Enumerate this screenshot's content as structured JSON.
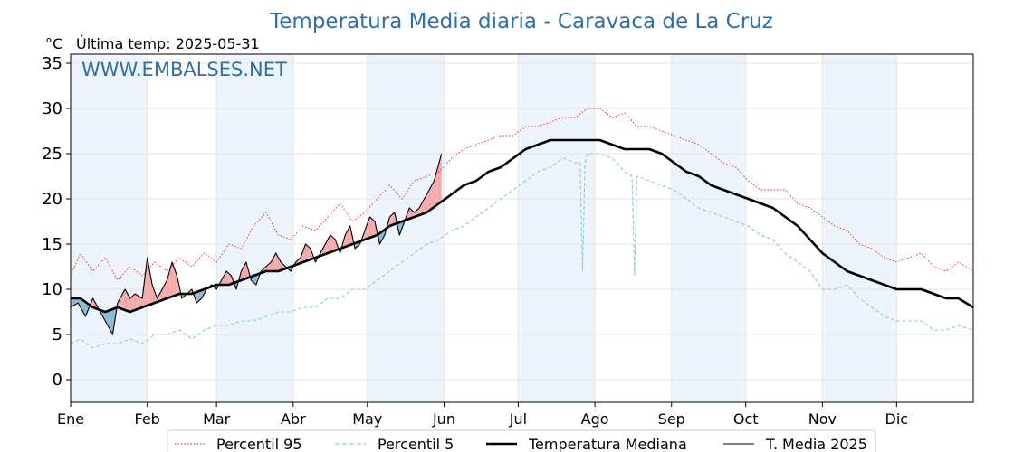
{
  "chart_data": {
    "type": "line",
    "title": "Temperatura Media diaria - Caravaca de La Cruz",
    "unit_label": "°C",
    "last_temp_text": "Última temp: 2025-05-31",
    "watermark": "WWW.EMBALSES.NET",
    "ylim": [
      -2.5,
      36
    ],
    "yticks": [
      0,
      5,
      10,
      15,
      20,
      25,
      30,
      35
    ],
    "xlim": [
      1,
      366
    ],
    "months": [
      "Ene",
      "Feb",
      "Mar",
      "Abr",
      "May",
      "Jun",
      "Jul",
      "Ago",
      "Sep",
      "Oct",
      "Nov",
      "Dic"
    ],
    "month_starts": [
      1,
      32,
      60,
      91,
      121,
      152,
      182,
      213,
      244,
      274,
      305,
      335
    ],
    "grid": true,
    "legend_placement": "bottom-center",
    "series": [
      {
        "name": "Percentil 95",
        "color": "#e8201a",
        "style": "dotted",
        "points": [
          [
            1,
            11.5
          ],
          [
            5,
            14
          ],
          [
            10,
            12
          ],
          [
            15,
            13.5
          ],
          [
            20,
            11
          ],
          [
            25,
            12.5
          ],
          [
            30,
            11.5
          ],
          [
            35,
            13
          ],
          [
            40,
            12
          ],
          [
            45,
            13.5
          ],
          [
            50,
            12.5
          ],
          [
            55,
            14
          ],
          [
            60,
            13
          ],
          [
            65,
            15
          ],
          [
            70,
            14.5
          ],
          [
            75,
            17
          ],
          [
            80,
            18.5
          ],
          [
            85,
            16
          ],
          [
            90,
            15.5
          ],
          [
            95,
            17
          ],
          [
            100,
            16.5
          ],
          [
            105,
            18
          ],
          [
            110,
            19.5
          ],
          [
            115,
            17.5
          ],
          [
            120,
            18.5
          ],
          [
            125,
            20
          ],
          [
            130,
            21.5
          ],
          [
            135,
            20
          ],
          [
            140,
            22
          ],
          [
            145,
            22.5
          ],
          [
            150,
            23
          ],
          [
            155,
            24.5
          ],
          [
            160,
            25.5
          ],
          [
            165,
            26
          ],
          [
            170,
            26.5
          ],
          [
            175,
            27
          ],
          [
            180,
            27
          ],
          [
            185,
            28
          ],
          [
            190,
            28
          ],
          [
            195,
            28.5
          ],
          [
            200,
            29
          ],
          [
            205,
            29
          ],
          [
            210,
            30
          ],
          [
            215,
            30
          ],
          [
            220,
            29
          ],
          [
            225,
            29.5
          ],
          [
            230,
            28
          ],
          [
            235,
            28
          ],
          [
            240,
            27.5
          ],
          [
            245,
            27
          ],
          [
            250,
            26.5
          ],
          [
            255,
            26
          ],
          [
            260,
            25
          ],
          [
            265,
            24
          ],
          [
            270,
            23.5
          ],
          [
            275,
            22
          ],
          [
            280,
            21
          ],
          [
            285,
            21
          ],
          [
            290,
            21
          ],
          [
            295,
            19.5
          ],
          [
            300,
            19
          ],
          [
            305,
            18
          ],
          [
            310,
            17
          ],
          [
            315,
            16.5
          ],
          [
            320,
            15
          ],
          [
            325,
            14.5
          ],
          [
            330,
            13.5
          ],
          [
            335,
            13
          ],
          [
            340,
            13.5
          ],
          [
            345,
            14
          ],
          [
            350,
            12.5
          ],
          [
            355,
            12
          ],
          [
            360,
            13
          ],
          [
            366,
            12
          ]
        ]
      },
      {
        "name": "Percentil 5",
        "color": "#8ec9dd",
        "style": "dashed",
        "points": [
          [
            1,
            4
          ],
          [
            5,
            4.5
          ],
          [
            10,
            3.5
          ],
          [
            15,
            4
          ],
          [
            20,
            4
          ],
          [
            25,
            4.5
          ],
          [
            30,
            4
          ],
          [
            35,
            5
          ],
          [
            40,
            5
          ],
          [
            45,
            5.5
          ],
          [
            50,
            4.5
          ],
          [
            55,
            5.5
          ],
          [
            60,
            6
          ],
          [
            65,
            6
          ],
          [
            70,
            6.5
          ],
          [
            75,
            6.5
          ],
          [
            80,
            7
          ],
          [
            85,
            7.5
          ],
          [
            90,
            7.5
          ],
          [
            95,
            8
          ],
          [
            100,
            8
          ],
          [
            105,
            9
          ],
          [
            110,
            9
          ],
          [
            115,
            10
          ],
          [
            120,
            10
          ],
          [
            125,
            11
          ],
          [
            130,
            12
          ],
          [
            135,
            13
          ],
          [
            140,
            14
          ],
          [
            145,
            15
          ],
          [
            150,
            15.5
          ],
          [
            155,
            16.5
          ],
          [
            160,
            17
          ],
          [
            165,
            18
          ],
          [
            170,
            19
          ],
          [
            175,
            20
          ],
          [
            180,
            21
          ],
          [
            185,
            22
          ],
          [
            190,
            23
          ],
          [
            195,
            23.5
          ],
          [
            200,
            24.5
          ],
          [
            205,
            24
          ],
          [
            207,
            24
          ],
          [
            208,
            12
          ],
          [
            209,
            24
          ],
          [
            210,
            25
          ],
          [
            215,
            25
          ],
          [
            220,
            24.5
          ],
          [
            225,
            23
          ],
          [
            228,
            22.5
          ],
          [
            229,
            11.5
          ],
          [
            230,
            22.5
          ],
          [
            235,
            22
          ],
          [
            240,
            21.5
          ],
          [
            245,
            21
          ],
          [
            250,
            20
          ],
          [
            255,
            19
          ],
          [
            260,
            18.5
          ],
          [
            265,
            18
          ],
          [
            270,
            17.5
          ],
          [
            275,
            17
          ],
          [
            280,
            16
          ],
          [
            285,
            15.5
          ],
          [
            290,
            14
          ],
          [
            295,
            13
          ],
          [
            300,
            12
          ],
          [
            305,
            10
          ],
          [
            310,
            10
          ],
          [
            315,
            10.5
          ],
          [
            320,
            9
          ],
          [
            325,
            8
          ],
          [
            330,
            7
          ],
          [
            335,
            6.5
          ],
          [
            340,
            6.5
          ],
          [
            345,
            6.5
          ],
          [
            350,
            5.5
          ],
          [
            355,
            5.5
          ],
          [
            360,
            6
          ],
          [
            366,
            5.5
          ]
        ]
      },
      {
        "name": "Temperatura Mediana",
        "color": "#000000",
        "style": "thick",
        "points": [
          [
            1,
            9
          ],
          [
            5,
            9
          ],
          [
            10,
            8
          ],
          [
            15,
            7.5
          ],
          [
            20,
            8
          ],
          [
            25,
            7.5
          ],
          [
            30,
            8
          ],
          [
            35,
            8.5
          ],
          [
            40,
            9
          ],
          [
            45,
            9.5
          ],
          [
            50,
            9.5
          ],
          [
            55,
            10
          ],
          [
            60,
            10.5
          ],
          [
            65,
            10.5
          ],
          [
            70,
            11
          ],
          [
            75,
            11.5
          ],
          [
            80,
            12
          ],
          [
            85,
            12
          ],
          [
            90,
            12.5
          ],
          [
            95,
            13
          ],
          [
            100,
            13.5
          ],
          [
            105,
            14
          ],
          [
            110,
            14.5
          ],
          [
            115,
            15
          ],
          [
            120,
            15.5
          ],
          [
            125,
            16
          ],
          [
            130,
            17
          ],
          [
            135,
            17.5
          ],
          [
            140,
            18
          ],
          [
            145,
            18.5
          ],
          [
            150,
            19.5
          ],
          [
            155,
            20.5
          ],
          [
            160,
            21.5
          ],
          [
            165,
            22
          ],
          [
            170,
            23
          ],
          [
            175,
            23.5
          ],
          [
            180,
            24.5
          ],
          [
            185,
            25.5
          ],
          [
            190,
            26
          ],
          [
            195,
            26.5
          ],
          [
            200,
            26.5
          ],
          [
            205,
            26.5
          ],
          [
            210,
            26.5
          ],
          [
            215,
            26.5
          ],
          [
            220,
            26
          ],
          [
            225,
            25.5
          ],
          [
            230,
            25.5
          ],
          [
            235,
            25.5
          ],
          [
            240,
            25
          ],
          [
            245,
            24
          ],
          [
            250,
            23
          ],
          [
            255,
            22.5
          ],
          [
            260,
            21.5
          ],
          [
            265,
            21
          ],
          [
            270,
            20.5
          ],
          [
            275,
            20
          ],
          [
            280,
            19.5
          ],
          [
            285,
            19
          ],
          [
            290,
            18
          ],
          [
            295,
            17
          ],
          [
            300,
            15.5
          ],
          [
            305,
            14
          ],
          [
            310,
            13
          ],
          [
            315,
            12
          ],
          [
            320,
            11.5
          ],
          [
            325,
            11
          ],
          [
            330,
            10.5
          ],
          [
            335,
            10
          ],
          [
            340,
            10
          ],
          [
            345,
            10
          ],
          [
            350,
            9.5
          ],
          [
            355,
            9
          ],
          [
            360,
            9
          ],
          [
            366,
            8
          ]
        ]
      },
      {
        "name": "T. Media 2025",
        "color": "#000000",
        "style": "thin",
        "points": [
          [
            1,
            8
          ],
          [
            4,
            8.5
          ],
          [
            7,
            7
          ],
          [
            10,
            9
          ],
          [
            13,
            7.5
          ],
          [
            16,
            6
          ],
          [
            18,
            5
          ],
          [
            20,
            8.5
          ],
          [
            23,
            10
          ],
          [
            25,
            9
          ],
          [
            27,
            9.5
          ],
          [
            30,
            9
          ],
          [
            32,
            13.5
          ],
          [
            34,
            10.5
          ],
          [
            36,
            9
          ],
          [
            38,
            10
          ],
          [
            40,
            11
          ],
          [
            42,
            13
          ],
          [
            44,
            11.5
          ],
          [
            46,
            9
          ],
          [
            48,
            9.5
          ],
          [
            50,
            10
          ],
          [
            52,
            8.5
          ],
          [
            54,
            9
          ],
          [
            56,
            10
          ],
          [
            58,
            10.5
          ],
          [
            60,
            10
          ],
          [
            62,
            11
          ],
          [
            64,
            12
          ],
          [
            66,
            11.5
          ],
          [
            68,
            10
          ],
          [
            70,
            12
          ],
          [
            72,
            13
          ],
          [
            74,
            11
          ],
          [
            76,
            10.5
          ],
          [
            78,
            12
          ],
          [
            80,
            12.5
          ],
          [
            82,
            13
          ],
          [
            84,
            14
          ],
          [
            86,
            13
          ],
          [
            88,
            12.5
          ],
          [
            90,
            12
          ],
          [
            92,
            13
          ],
          [
            94,
            13.5
          ],
          [
            96,
            15
          ],
          [
            98,
            14.5
          ],
          [
            100,
            13
          ],
          [
            102,
            14
          ],
          [
            104,
            15
          ],
          [
            106,
            16
          ],
          [
            108,
            15.5
          ],
          [
            110,
            14
          ],
          [
            112,
            16
          ],
          [
            114,
            17
          ],
          [
            116,
            14.5
          ],
          [
            118,
            15
          ],
          [
            120,
            16.5
          ],
          [
            122,
            18
          ],
          [
            124,
            17.5
          ],
          [
            126,
            15
          ],
          [
            128,
            16
          ],
          [
            130,
            18
          ],
          [
            132,
            18.5
          ],
          [
            134,
            16
          ],
          [
            136,
            17.5
          ],
          [
            138,
            19
          ],
          [
            140,
            18.5
          ],
          [
            142,
            19
          ],
          [
            144,
            20
          ],
          [
            146,
            21
          ],
          [
            148,
            22
          ],
          [
            150,
            24
          ],
          [
            151,
            25
          ]
        ]
      }
    ]
  },
  "legend": {
    "p95": "Percentil 95",
    "p5": "Percentil 5",
    "mediana": "Temperatura Mediana",
    "media2025": "T. Media 2025"
  },
  "colors": {
    "above_fill": "#f2a8a8",
    "below_fill": "#8db5d5",
    "title": "#2f6fa6",
    "band": "#eef4fb"
  }
}
